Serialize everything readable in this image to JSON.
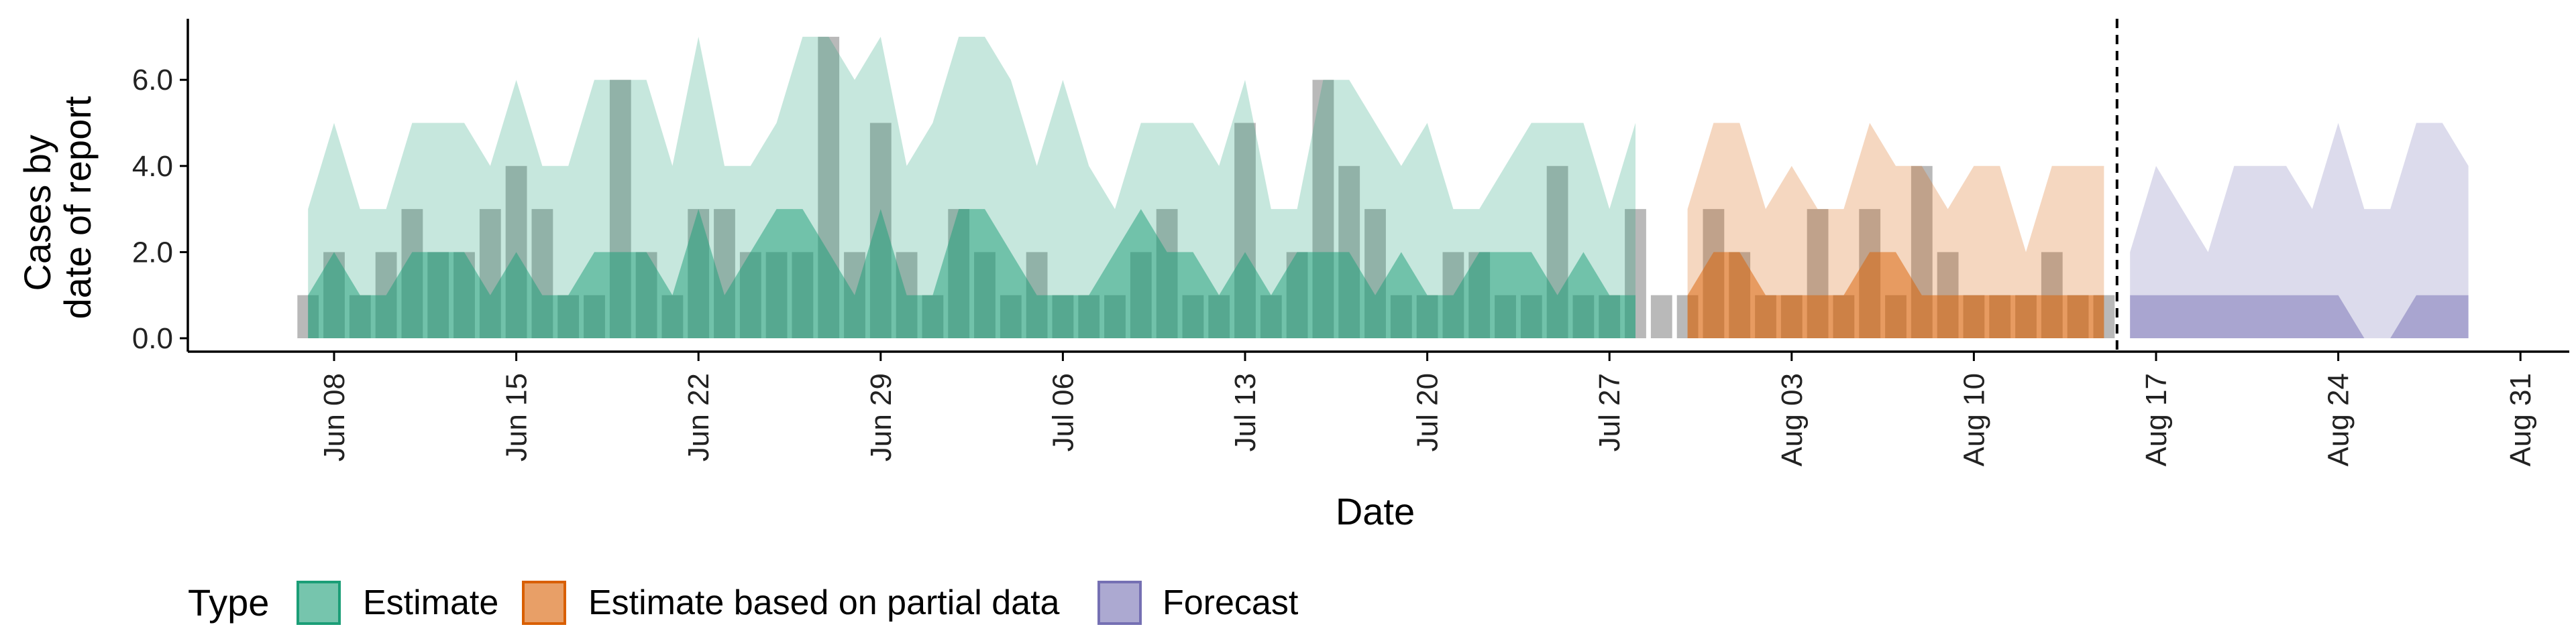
{
  "chart_data": {
    "type": "area",
    "title": "",
    "xlabel": "Date",
    "ylabel": [
      "Cases by",
      "date of report"
    ],
    "x_ticks": [
      "Jun 08",
      "Jun 15",
      "Jun 22",
      "Jun 29",
      "Jul 06",
      "Jul 13",
      "Jul 20",
      "Jul 27",
      "Aug 03",
      "Aug 10",
      "Aug 17",
      "Aug 24",
      "Aug 31"
    ],
    "y_ticks": [
      "0.0",
      "2.0",
      "4.0",
      "6.0"
    ],
    "ylim": [
      -0.3,
      7.3
    ],
    "xlim": [
      "2020-05-30",
      "2020-09-02"
    ],
    "forecast_date": "2020-08-15",
    "grid": false,
    "legend": {
      "position": "bottom",
      "title": "Type",
      "entries": [
        {
          "label": "Estimate",
          "color": "#1B9E77"
        },
        {
          "label": "Estimate based on partial data",
          "color": "#D95F02"
        },
        {
          "label": "Forecast",
          "color": "#7570B3"
        }
      ]
    },
    "reported_cases": {
      "color": "#808080",
      "dates": [
        "2020-06-07",
        "2020-06-08",
        "2020-06-09",
        "2020-06-10",
        "2020-06-11",
        "2020-06-12",
        "2020-06-13",
        "2020-06-14",
        "2020-06-15",
        "2020-06-16",
        "2020-06-17",
        "2020-06-18",
        "2020-06-19",
        "2020-06-20",
        "2020-06-21",
        "2020-06-22",
        "2020-06-23",
        "2020-06-24",
        "2020-06-25",
        "2020-06-26",
        "2020-06-27",
        "2020-06-28",
        "2020-06-29",
        "2020-06-30",
        "2020-07-01",
        "2020-07-02",
        "2020-07-03",
        "2020-07-04",
        "2020-07-05",
        "2020-07-06",
        "2020-07-07",
        "2020-07-08",
        "2020-07-09",
        "2020-07-10",
        "2020-07-11",
        "2020-07-12",
        "2020-07-13",
        "2020-07-14",
        "2020-07-15",
        "2020-07-16",
        "2020-07-17",
        "2020-07-18",
        "2020-07-19",
        "2020-07-20",
        "2020-07-21",
        "2020-07-22",
        "2020-07-23",
        "2020-07-24",
        "2020-07-25",
        "2020-07-26",
        "2020-07-27",
        "2020-07-28",
        "2020-07-29",
        "2020-07-30",
        "2020-07-31",
        "2020-08-01",
        "2020-08-02",
        "2020-08-03",
        "2020-08-04",
        "2020-08-05",
        "2020-08-06",
        "2020-08-07",
        "2020-08-08",
        "2020-08-09",
        "2020-08-10",
        "2020-08-11",
        "2020-08-12",
        "2020-08-13",
        "2020-08-14",
        "2020-08-15"
      ],
      "values": [
        1,
        2,
        1,
        2,
        3,
        2,
        2,
        3,
        4,
        3,
        1,
        1,
        6,
        2,
        1,
        3,
        3,
        2,
        2,
        2,
        7,
        2,
        5,
        2,
        1,
        3,
        2,
        1,
        2,
        1,
        1,
        1,
        2,
        3,
        1,
        1,
        5,
        1,
        2,
        6,
        4,
        3,
        1,
        1,
        2,
        2,
        1,
        1,
        4,
        1,
        1,
        3,
        1,
        1,
        3,
        2,
        1,
        1,
        3,
        1,
        3,
        1,
        4,
        2,
        1,
        1,
        1,
        2,
        1,
        1
      ]
    },
    "series": [
      {
        "name": "Estimate",
        "color": "#1B9E77",
        "dates": [
          "2020-06-07",
          "2020-06-08",
          "2020-06-09",
          "2020-06-10",
          "2020-06-11",
          "2020-06-12",
          "2020-06-13",
          "2020-06-14",
          "2020-06-15",
          "2020-06-16",
          "2020-06-17",
          "2020-06-18",
          "2020-06-19",
          "2020-06-20",
          "2020-06-21",
          "2020-06-22",
          "2020-06-23",
          "2020-06-24",
          "2020-06-25",
          "2020-06-26",
          "2020-06-27",
          "2020-06-28",
          "2020-06-29",
          "2020-06-30",
          "2020-07-01",
          "2020-07-02",
          "2020-07-03",
          "2020-07-04",
          "2020-07-05",
          "2020-07-06",
          "2020-07-07",
          "2020-07-08",
          "2020-07-09",
          "2020-07-10",
          "2020-07-11",
          "2020-07-12",
          "2020-07-13",
          "2020-07-14",
          "2020-07-15",
          "2020-07-16",
          "2020-07-17",
          "2020-07-18",
          "2020-07-19",
          "2020-07-20",
          "2020-07-21",
          "2020-07-22",
          "2020-07-23",
          "2020-07-24",
          "2020-07-25",
          "2020-07-26",
          "2020-07-27",
          "2020-07-28"
        ],
        "inner_lower": [
          0,
          0,
          0,
          0,
          0,
          0,
          0,
          0,
          0,
          0,
          0,
          0,
          0,
          0,
          0,
          0,
          0,
          0,
          0,
          0,
          0,
          0,
          0,
          0,
          0,
          0,
          0,
          0,
          0,
          0,
          0,
          0,
          0,
          0,
          0,
          0,
          0,
          0,
          0,
          0,
          0,
          0,
          0,
          0,
          0,
          0,
          0,
          0,
          0,
          0,
          0,
          0
        ],
        "inner_upper": [
          1,
          2,
          1,
          1,
          2,
          2,
          2,
          1,
          2,
          1,
          1,
          2,
          2,
          2,
          1,
          3,
          1,
          2,
          3,
          3,
          2,
          1,
          3,
          1,
          1,
          3,
          3,
          2,
          1,
          1,
          1,
          2,
          3,
          2,
          2,
          1,
          2,
          1,
          2,
          2,
          2,
          1,
          2,
          1,
          1,
          2,
          2,
          2,
          1,
          2,
          1,
          1
        ],
        "outer_lower": [
          0,
          0,
          0,
          0,
          0,
          0,
          0,
          0,
          0,
          0,
          0,
          0,
          0,
          0,
          0,
          0,
          0,
          0,
          0,
          0,
          0,
          0,
          0,
          0,
          0,
          0,
          0,
          0,
          0,
          0,
          0,
          0,
          0,
          0,
          0,
          0,
          0,
          0,
          0,
          0,
          0,
          0,
          0,
          0,
          0,
          0,
          0,
          0,
          0,
          0,
          0,
          0
        ],
        "outer_upper": [
          3,
          5,
          3,
          3,
          5,
          5,
          5,
          4,
          6,
          4,
          4,
          6,
          6,
          6,
          4,
          7,
          4,
          4,
          5,
          7,
          7,
          6,
          7,
          4,
          5,
          7,
          7,
          6,
          4,
          6,
          4,
          3,
          5,
          5,
          5,
          4,
          6,
          3,
          3,
          6,
          6,
          5,
          4,
          5,
          3,
          3,
          4,
          5,
          5,
          5,
          3,
          5
        ]
      },
      {
        "name": "Estimate based on partial data",
        "color": "#D95F02",
        "dates": [
          "2020-07-30",
          "2020-07-31",
          "2020-08-01",
          "2020-08-02",
          "2020-08-03",
          "2020-08-04",
          "2020-08-05",
          "2020-08-06",
          "2020-08-07",
          "2020-08-08",
          "2020-08-09",
          "2020-08-10",
          "2020-08-11",
          "2020-08-12",
          "2020-08-13",
          "2020-08-14",
          "2020-08-15"
        ],
        "inner_lower": [
          0,
          0,
          0,
          0,
          0,
          0,
          0,
          0,
          0,
          0,
          0,
          0,
          0,
          0,
          0,
          0,
          0
        ],
        "inner_upper": [
          1,
          2,
          2,
          1,
          1,
          1,
          1,
          2,
          2,
          1,
          1,
          1,
          1,
          1,
          1,
          1,
          1
        ],
        "outer_lower": [
          0,
          0,
          0,
          0,
          0,
          0,
          0,
          0,
          0,
          0,
          0,
          0,
          0,
          0,
          0,
          0,
          0
        ],
        "outer_upper": [
          3,
          5,
          5,
          3,
          4,
          3,
          3,
          5,
          4,
          4,
          3,
          4,
          4,
          2,
          4,
          4,
          4
        ]
      },
      {
        "name": "Forecast",
        "color": "#7570B3",
        "dates": [
          "2020-08-16",
          "2020-08-17",
          "2020-08-18",
          "2020-08-19",
          "2020-08-20",
          "2020-08-21",
          "2020-08-22",
          "2020-08-23",
          "2020-08-24",
          "2020-08-25",
          "2020-08-26",
          "2020-08-27",
          "2020-08-28",
          "2020-08-29"
        ],
        "inner_lower": [
          0,
          0,
          0,
          0,
          0,
          0,
          0,
          0,
          0,
          0,
          0,
          0,
          0,
          0
        ],
        "inner_upper": [
          1,
          1,
          1,
          1,
          1,
          1,
          1,
          1,
          1,
          0,
          0,
          1,
          1,
          1
        ],
        "outer_lower": [
          0,
          0,
          0,
          0,
          0,
          0,
          0,
          0,
          0,
          0,
          0,
          0,
          0,
          0
        ],
        "outer_upper": [
          2,
          4,
          3,
          2,
          4,
          4,
          4,
          3,
          5,
          3,
          3,
          5,
          5,
          4
        ]
      }
    ]
  }
}
